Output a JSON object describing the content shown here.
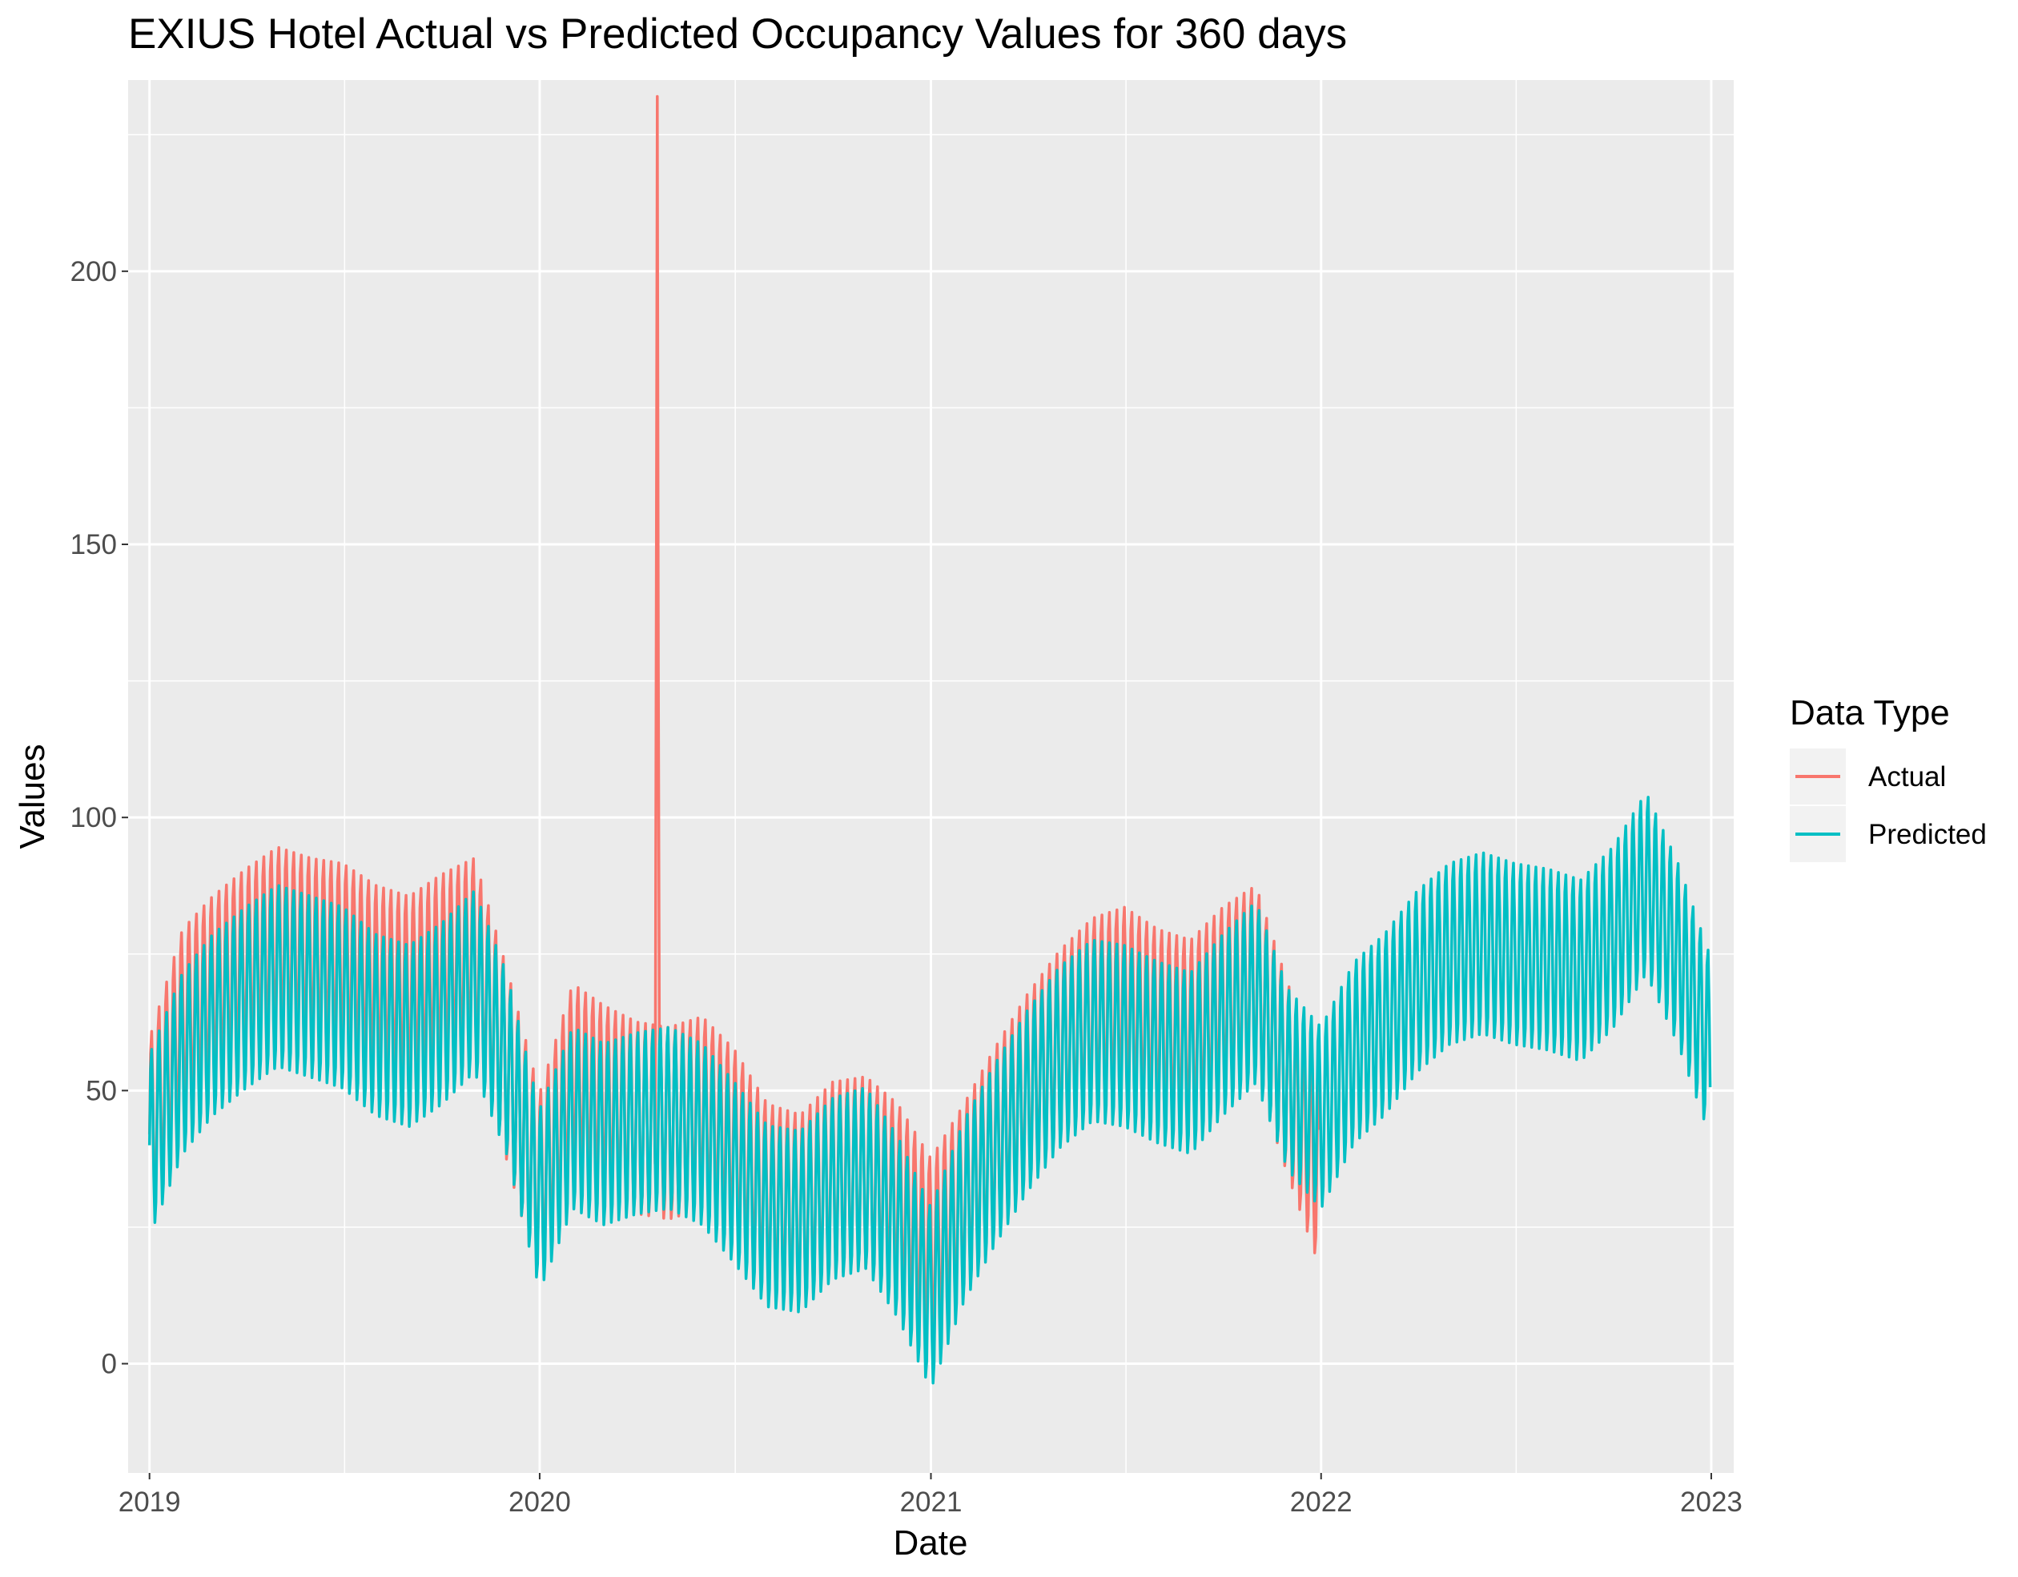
{
  "chart_data": {
    "type": "line",
    "title": "EXIUS Hotel Actual vs Predicted Occupancy Values for 360 days",
    "xlabel": "Date",
    "ylabel": "Values",
    "x_ticks": [
      "2019",
      "2020",
      "2021",
      "2022",
      "2023"
    ],
    "y_ticks": [
      0,
      50,
      100,
      150,
      200
    ],
    "xlim": [
      "2018-12-12",
      "2023-01-22"
    ],
    "ylim": [
      -20,
      235
    ],
    "grid": true,
    "legend": {
      "title": "Data Type",
      "position": "right"
    },
    "series": [
      {
        "name": "Actual",
        "color": "#F8766D",
        "weekly_amplitude": 18,
        "spike": {
          "date": "2020-04-20",
          "value": 232
        },
        "x": [
          "2019-01-01",
          "2019-02-01",
          "2019-03-01",
          "2019-04-01",
          "2019-05-01",
          "2019-06-01",
          "2019-07-01",
          "2019-08-01",
          "2019-09-01",
          "2019-10-01",
          "2019-11-01",
          "2019-12-01",
          "2020-01-01",
          "2020-02-01",
          "2020-03-01",
          "2020-04-01",
          "2020-05-01",
          "2020-06-01",
          "2020-07-01",
          "2020-08-01",
          "2020-09-01",
          "2020-10-01",
          "2020-11-01",
          "2020-12-01",
          "2021-01-01",
          "2021-02-01",
          "2021-03-01",
          "2021-04-01",
          "2021-05-01",
          "2021-06-01",
          "2021-07-01",
          "2021-08-01",
          "2021-09-01",
          "2021-10-01",
          "2021-11-01",
          "2021-12-01",
          "2021-12-31"
        ],
        "y": [
          42,
          62,
          68,
          73,
          77,
          75,
          74,
          70,
          68,
          72,
          75,
          55,
          32,
          52,
          48,
          45,
          44,
          46,
          40,
          30,
          28,
          34,
          35,
          30,
          20,
          30,
          40,
          50,
          58,
          64,
          66,
          62,
          60,
          66,
          70,
          52,
          35
        ]
      },
      {
        "name": "Predicted",
        "color": "#00BFC4",
        "weekly_amplitude": 17,
        "x": [
          "2019-01-01",
          "2019-02-01",
          "2019-03-01",
          "2019-04-01",
          "2019-05-01",
          "2019-06-01",
          "2019-07-01",
          "2019-08-01",
          "2019-09-01",
          "2019-10-01",
          "2019-11-01",
          "2019-12-01",
          "2020-01-01",
          "2020-02-01",
          "2020-03-01",
          "2020-04-01",
          "2020-05-01",
          "2020-06-01",
          "2020-07-01",
          "2020-08-01",
          "2020-09-01",
          "2020-10-01",
          "2020-11-01",
          "2020-12-01",
          "2021-01-01",
          "2021-02-01",
          "2021-03-01",
          "2021-04-01",
          "2021-05-01",
          "2021-06-01",
          "2021-07-01",
          "2021-08-01",
          "2021-09-01",
          "2021-10-01",
          "2021-11-01",
          "2021-12-01",
          "2022-01-01",
          "2022-02-01",
          "2022-03-01",
          "2022-04-01",
          "2022-05-01",
          "2022-06-01",
          "2022-07-01",
          "2022-08-01",
          "2022-09-01",
          "2022-10-01",
          "2022-11-01",
          "2022-12-01",
          "2022-12-31"
        ],
        "y": [
          40,
          55,
          62,
          67,
          71,
          69,
          67,
          62,
          60,
          64,
          70,
          55,
          30,
          45,
          42,
          44,
          45,
          42,
          35,
          27,
          26,
          32,
          34,
          25,
          12,
          28,
          38,
          48,
          56,
          61,
          60,
          57,
          55,
          62,
          68,
          52,
          45,
          57,
          62,
          70,
          75,
          77,
          75,
          74,
          72,
          78,
          88,
          75,
          58
        ]
      }
    ]
  }
}
